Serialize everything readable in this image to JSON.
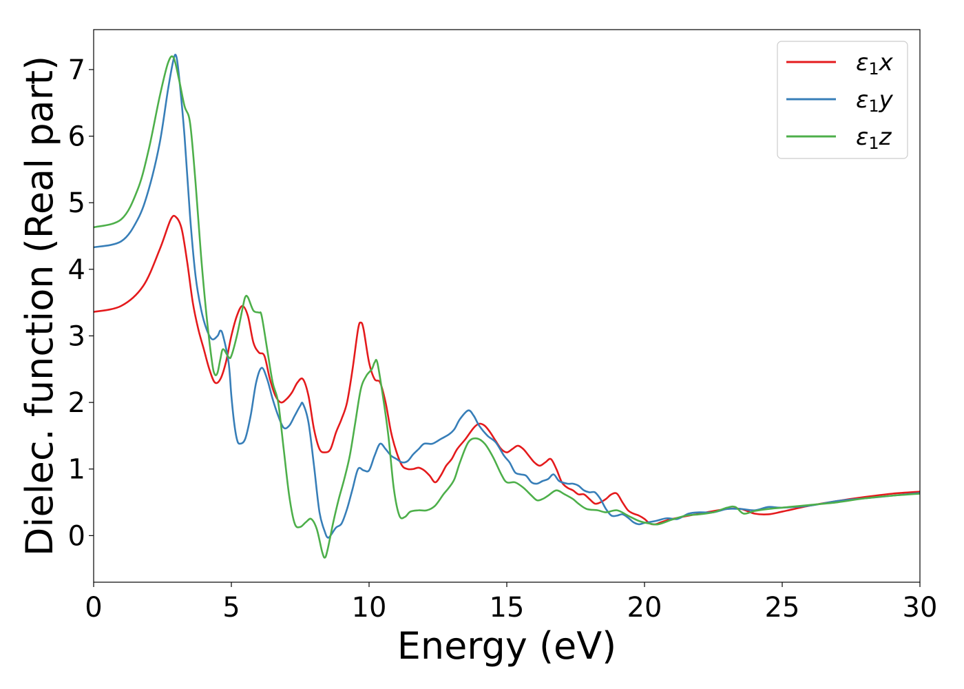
{
  "chart_data": {
    "type": "line",
    "title": "",
    "xlabel": "Energy (eV)",
    "ylabel": "Dielec. function (Real part)",
    "xlim": [
      0,
      30
    ],
    "ylim": [
      -0.7,
      7.6
    ],
    "xticks": [
      0,
      5,
      10,
      15,
      20,
      25,
      30
    ],
    "yticks": [
      0,
      1,
      2,
      3,
      4,
      5,
      6,
      7
    ],
    "grid": false,
    "legend": "top-right",
    "series": [
      {
        "name": "ε1x",
        "legend_base": "ε",
        "legend_sub": "1",
        "legend_suffix": "x",
        "color": "#e41a1c",
        "points": [
          [
            0,
            3.36
          ],
          [
            1,
            3.45
          ],
          [
            1.8,
            3.75
          ],
          [
            2.4,
            4.3
          ],
          [
            2.8,
            4.75
          ],
          [
            3.0,
            4.78
          ],
          [
            3.2,
            4.6
          ],
          [
            3.4,
            4.1
          ],
          [
            3.6,
            3.5
          ],
          [
            3.8,
            3.1
          ],
          [
            4.0,
            2.8
          ],
          [
            4.2,
            2.5
          ],
          [
            4.4,
            2.3
          ],
          [
            4.6,
            2.35
          ],
          [
            4.8,
            2.6
          ],
          [
            5.0,
            3.0
          ],
          [
            5.2,
            3.3
          ],
          [
            5.4,
            3.45
          ],
          [
            5.6,
            3.3
          ],
          [
            5.8,
            2.9
          ],
          [
            6.0,
            2.75
          ],
          [
            6.2,
            2.7
          ],
          [
            6.4,
            2.35
          ],
          [
            6.6,
            2.1
          ],
          [
            6.8,
            2.0
          ],
          [
            7.0,
            2.05
          ],
          [
            7.2,
            2.15
          ],
          [
            7.4,
            2.3
          ],
          [
            7.6,
            2.35
          ],
          [
            7.8,
            2.1
          ],
          [
            8.0,
            1.6
          ],
          [
            8.2,
            1.3
          ],
          [
            8.4,
            1.25
          ],
          [
            8.6,
            1.3
          ],
          [
            8.8,
            1.55
          ],
          [
            9.0,
            1.75
          ],
          [
            9.2,
            2.0
          ],
          [
            9.4,
            2.5
          ],
          [
            9.6,
            3.1
          ],
          [
            9.7,
            3.2
          ],
          [
            9.8,
            3.1
          ],
          [
            10.0,
            2.6
          ],
          [
            10.2,
            2.35
          ],
          [
            10.4,
            2.3
          ],
          [
            10.6,
            2.0
          ],
          [
            10.8,
            1.55
          ],
          [
            11.0,
            1.25
          ],
          [
            11.2,
            1.05
          ],
          [
            11.4,
            1.0
          ],
          [
            11.6,
            1.0
          ],
          [
            11.8,
            1.02
          ],
          [
            12.0,
            0.98
          ],
          [
            12.2,
            0.9
          ],
          [
            12.4,
            0.8
          ],
          [
            12.6,
            0.9
          ],
          [
            12.8,
            1.05
          ],
          [
            13.0,
            1.15
          ],
          [
            13.2,
            1.3
          ],
          [
            13.5,
            1.45
          ],
          [
            13.8,
            1.62
          ],
          [
            14.0,
            1.68
          ],
          [
            14.2,
            1.65
          ],
          [
            14.4,
            1.55
          ],
          [
            14.6,
            1.42
          ],
          [
            14.8,
            1.3
          ],
          [
            15.0,
            1.25
          ],
          [
            15.2,
            1.3
          ],
          [
            15.4,
            1.35
          ],
          [
            15.6,
            1.3
          ],
          [
            15.8,
            1.2
          ],
          [
            16.0,
            1.1
          ],
          [
            16.2,
            1.05
          ],
          [
            16.4,
            1.1
          ],
          [
            16.6,
            1.15
          ],
          [
            16.8,
            1.0
          ],
          [
            17.0,
            0.8
          ],
          [
            17.2,
            0.72
          ],
          [
            17.4,
            0.68
          ],
          [
            17.6,
            0.62
          ],
          [
            17.8,
            0.62
          ],
          [
            18.0,
            0.55
          ],
          [
            18.2,
            0.48
          ],
          [
            18.4,
            0.5
          ],
          [
            18.6,
            0.55
          ],
          [
            18.8,
            0.62
          ],
          [
            19.0,
            0.63
          ],
          [
            19.2,
            0.5
          ],
          [
            19.4,
            0.38
          ],
          [
            19.6,
            0.33
          ],
          [
            19.8,
            0.3
          ],
          [
            20.0,
            0.25
          ],
          [
            20.2,
            0.18
          ],
          [
            20.4,
            0.17
          ],
          [
            20.6,
            0.2
          ],
          [
            21.0,
            0.25
          ],
          [
            22.0,
            0.33
          ],
          [
            23.0,
            0.4
          ],
          [
            23.5,
            0.4
          ],
          [
            24.0,
            0.33
          ],
          [
            24.5,
            0.32
          ],
          [
            25.0,
            0.36
          ],
          [
            26.0,
            0.45
          ],
          [
            27.0,
            0.52
          ],
          [
            28.0,
            0.58
          ],
          [
            29.0,
            0.63
          ],
          [
            30.0,
            0.66
          ]
        ]
      },
      {
        "name": "ε1y",
        "legend_base": "ε",
        "legend_sub": "1",
        "legend_suffix": "y",
        "color": "#377eb8",
        "points": [
          [
            0,
            4.33
          ],
          [
            1,
            4.42
          ],
          [
            1.6,
            4.75
          ],
          [
            2.0,
            5.2
          ],
          [
            2.4,
            5.9
          ],
          [
            2.7,
            6.7
          ],
          [
            2.9,
            7.15
          ],
          [
            3.0,
            7.2
          ],
          [
            3.1,
            6.9
          ],
          [
            3.3,
            6.0
          ],
          [
            3.5,
            4.8
          ],
          [
            3.7,
            3.9
          ],
          [
            3.9,
            3.4
          ],
          [
            4.1,
            3.1
          ],
          [
            4.3,
            2.95
          ],
          [
            4.5,
            3.0
          ],
          [
            4.6,
            3.08
          ],
          [
            4.7,
            3.0
          ],
          [
            4.9,
            2.6
          ],
          [
            5.0,
            2.1
          ],
          [
            5.1,
            1.7
          ],
          [
            5.2,
            1.45
          ],
          [
            5.3,
            1.38
          ],
          [
            5.5,
            1.45
          ],
          [
            5.7,
            1.8
          ],
          [
            5.9,
            2.3
          ],
          [
            6.1,
            2.52
          ],
          [
            6.3,
            2.35
          ],
          [
            6.5,
            2.05
          ],
          [
            6.7,
            1.8
          ],
          [
            6.9,
            1.62
          ],
          [
            7.1,
            1.65
          ],
          [
            7.3,
            1.8
          ],
          [
            7.5,
            1.95
          ],
          [
            7.6,
            1.98
          ],
          [
            7.8,
            1.7
          ],
          [
            8.0,
            1.05
          ],
          [
            8.2,
            0.35
          ],
          [
            8.4,
            0.05
          ],
          [
            8.5,
            -0.03
          ],
          [
            8.6,
            0.0
          ],
          [
            8.8,
            0.12
          ],
          [
            9.0,
            0.18
          ],
          [
            9.2,
            0.4
          ],
          [
            9.4,
            0.7
          ],
          [
            9.6,
            1.0
          ],
          [
            9.8,
            0.98
          ],
          [
            10.0,
            0.98
          ],
          [
            10.2,
            1.2
          ],
          [
            10.4,
            1.38
          ],
          [
            10.6,
            1.3
          ],
          [
            10.8,
            1.2
          ],
          [
            11.0,
            1.15
          ],
          [
            11.2,
            1.1
          ],
          [
            11.4,
            1.12
          ],
          [
            11.6,
            1.22
          ],
          [
            11.8,
            1.3
          ],
          [
            12.0,
            1.38
          ],
          [
            12.3,
            1.38
          ],
          [
            12.6,
            1.45
          ],
          [
            12.9,
            1.52
          ],
          [
            13.1,
            1.6
          ],
          [
            13.3,
            1.75
          ],
          [
            13.6,
            1.88
          ],
          [
            13.8,
            1.8
          ],
          [
            14.0,
            1.65
          ],
          [
            14.3,
            1.5
          ],
          [
            14.6,
            1.4
          ],
          [
            14.9,
            1.2
          ],
          [
            15.1,
            1.1
          ],
          [
            15.3,
            0.95
          ],
          [
            15.5,
            0.92
          ],
          [
            15.7,
            0.9
          ],
          [
            15.9,
            0.8
          ],
          [
            16.1,
            0.78
          ],
          [
            16.3,
            0.82
          ],
          [
            16.5,
            0.85
          ],
          [
            16.7,
            0.92
          ],
          [
            16.9,
            0.82
          ],
          [
            17.2,
            0.78
          ],
          [
            17.4,
            0.78
          ],
          [
            17.6,
            0.75
          ],
          [
            17.8,
            0.68
          ],
          [
            18.0,
            0.65
          ],
          [
            18.2,
            0.65
          ],
          [
            18.4,
            0.55
          ],
          [
            18.6,
            0.4
          ],
          [
            18.8,
            0.3
          ],
          [
            19.0,
            0.3
          ],
          [
            19.2,
            0.32
          ],
          [
            19.4,
            0.27
          ],
          [
            19.6,
            0.2
          ],
          [
            19.8,
            0.17
          ],
          [
            20.0,
            0.19
          ],
          [
            20.4,
            0.22
          ],
          [
            20.8,
            0.26
          ],
          [
            21.2,
            0.25
          ],
          [
            21.6,
            0.33
          ],
          [
            22.0,
            0.35
          ],
          [
            22.5,
            0.35
          ],
          [
            23.0,
            0.4
          ],
          [
            23.5,
            0.4
          ],
          [
            24.0,
            0.38
          ],
          [
            24.5,
            0.43
          ],
          [
            25.0,
            0.42
          ],
          [
            26.0,
            0.45
          ],
          [
            27.0,
            0.52
          ],
          [
            28.0,
            0.56
          ],
          [
            29.0,
            0.6
          ],
          [
            30.0,
            0.64
          ]
        ]
      },
      {
        "name": "ε1z",
        "legend_base": "ε",
        "legend_sub": "1",
        "legend_suffix": "z",
        "color": "#4daf4a",
        "points": [
          [
            0,
            4.63
          ],
          [
            1,
            4.75
          ],
          [
            1.6,
            5.2
          ],
          [
            2.0,
            5.8
          ],
          [
            2.4,
            6.6
          ],
          [
            2.7,
            7.1
          ],
          [
            2.9,
            7.18
          ],
          [
            3.1,
            6.85
          ],
          [
            3.3,
            6.45
          ],
          [
            3.5,
            6.2
          ],
          [
            3.7,
            5.3
          ],
          [
            3.9,
            4.2
          ],
          [
            4.1,
            3.3
          ],
          [
            4.3,
            2.6
          ],
          [
            4.4,
            2.42
          ],
          [
            4.5,
            2.45
          ],
          [
            4.6,
            2.65
          ],
          [
            4.7,
            2.8
          ],
          [
            4.9,
            2.68
          ],
          [
            5.0,
            2.7
          ],
          [
            5.2,
            3.0
          ],
          [
            5.4,
            3.4
          ],
          [
            5.5,
            3.58
          ],
          [
            5.6,
            3.58
          ],
          [
            5.8,
            3.38
          ],
          [
            6.0,
            3.35
          ],
          [
            6.1,
            3.3
          ],
          [
            6.3,
            2.8
          ],
          [
            6.5,
            2.3
          ],
          [
            6.7,
            2.0
          ],
          [
            6.9,
            1.3
          ],
          [
            7.1,
            0.6
          ],
          [
            7.3,
            0.18
          ],
          [
            7.5,
            0.13
          ],
          [
            7.7,
            0.2
          ],
          [
            7.9,
            0.25
          ],
          [
            8.1,
            0.1
          ],
          [
            8.3,
            -0.25
          ],
          [
            8.4,
            -0.33
          ],
          [
            8.5,
            -0.2
          ],
          [
            8.7,
            0.2
          ],
          [
            8.9,
            0.55
          ],
          [
            9.1,
            0.85
          ],
          [
            9.3,
            1.2
          ],
          [
            9.5,
            1.7
          ],
          [
            9.7,
            2.2
          ],
          [
            9.9,
            2.4
          ],
          [
            10.1,
            2.5
          ],
          [
            10.2,
            2.6
          ],
          [
            10.3,
            2.6
          ],
          [
            10.5,
            2.1
          ],
          [
            10.7,
            1.5
          ],
          [
            10.9,
            0.7
          ],
          [
            11.1,
            0.3
          ],
          [
            11.3,
            0.28
          ],
          [
            11.5,
            0.36
          ],
          [
            11.8,
            0.38
          ],
          [
            12.1,
            0.38
          ],
          [
            12.4,
            0.45
          ],
          [
            12.7,
            0.62
          ],
          [
            12.9,
            0.72
          ],
          [
            13.1,
            0.85
          ],
          [
            13.3,
            1.1
          ],
          [
            13.6,
            1.4
          ],
          [
            13.9,
            1.46
          ],
          [
            14.2,
            1.38
          ],
          [
            14.5,
            1.18
          ],
          [
            14.8,
            0.92
          ],
          [
            15.0,
            0.8
          ],
          [
            15.3,
            0.8
          ],
          [
            15.6,
            0.72
          ],
          [
            15.9,
            0.6
          ],
          [
            16.1,
            0.53
          ],
          [
            16.3,
            0.55
          ],
          [
            16.5,
            0.6
          ],
          [
            16.8,
            0.68
          ],
          [
            17.1,
            0.62
          ],
          [
            17.4,
            0.55
          ],
          [
            17.6,
            0.48
          ],
          [
            17.9,
            0.4
          ],
          [
            18.3,
            0.38
          ],
          [
            18.6,
            0.35
          ],
          [
            19.0,
            0.38
          ],
          [
            19.4,
            0.3
          ],
          [
            19.8,
            0.22
          ],
          [
            20.2,
            0.18
          ],
          [
            20.5,
            0.17
          ],
          [
            21.0,
            0.24
          ],
          [
            21.5,
            0.3
          ],
          [
            22.0,
            0.32
          ],
          [
            22.5,
            0.35
          ],
          [
            23.0,
            0.42
          ],
          [
            23.3,
            0.43
          ],
          [
            23.6,
            0.33
          ],
          [
            24.0,
            0.37
          ],
          [
            24.5,
            0.4
          ],
          [
            25.0,
            0.42
          ],
          [
            26.0,
            0.46
          ],
          [
            27.0,
            0.5
          ],
          [
            28.0,
            0.56
          ],
          [
            29.0,
            0.6
          ],
          [
            30.0,
            0.63
          ]
        ]
      }
    ]
  }
}
